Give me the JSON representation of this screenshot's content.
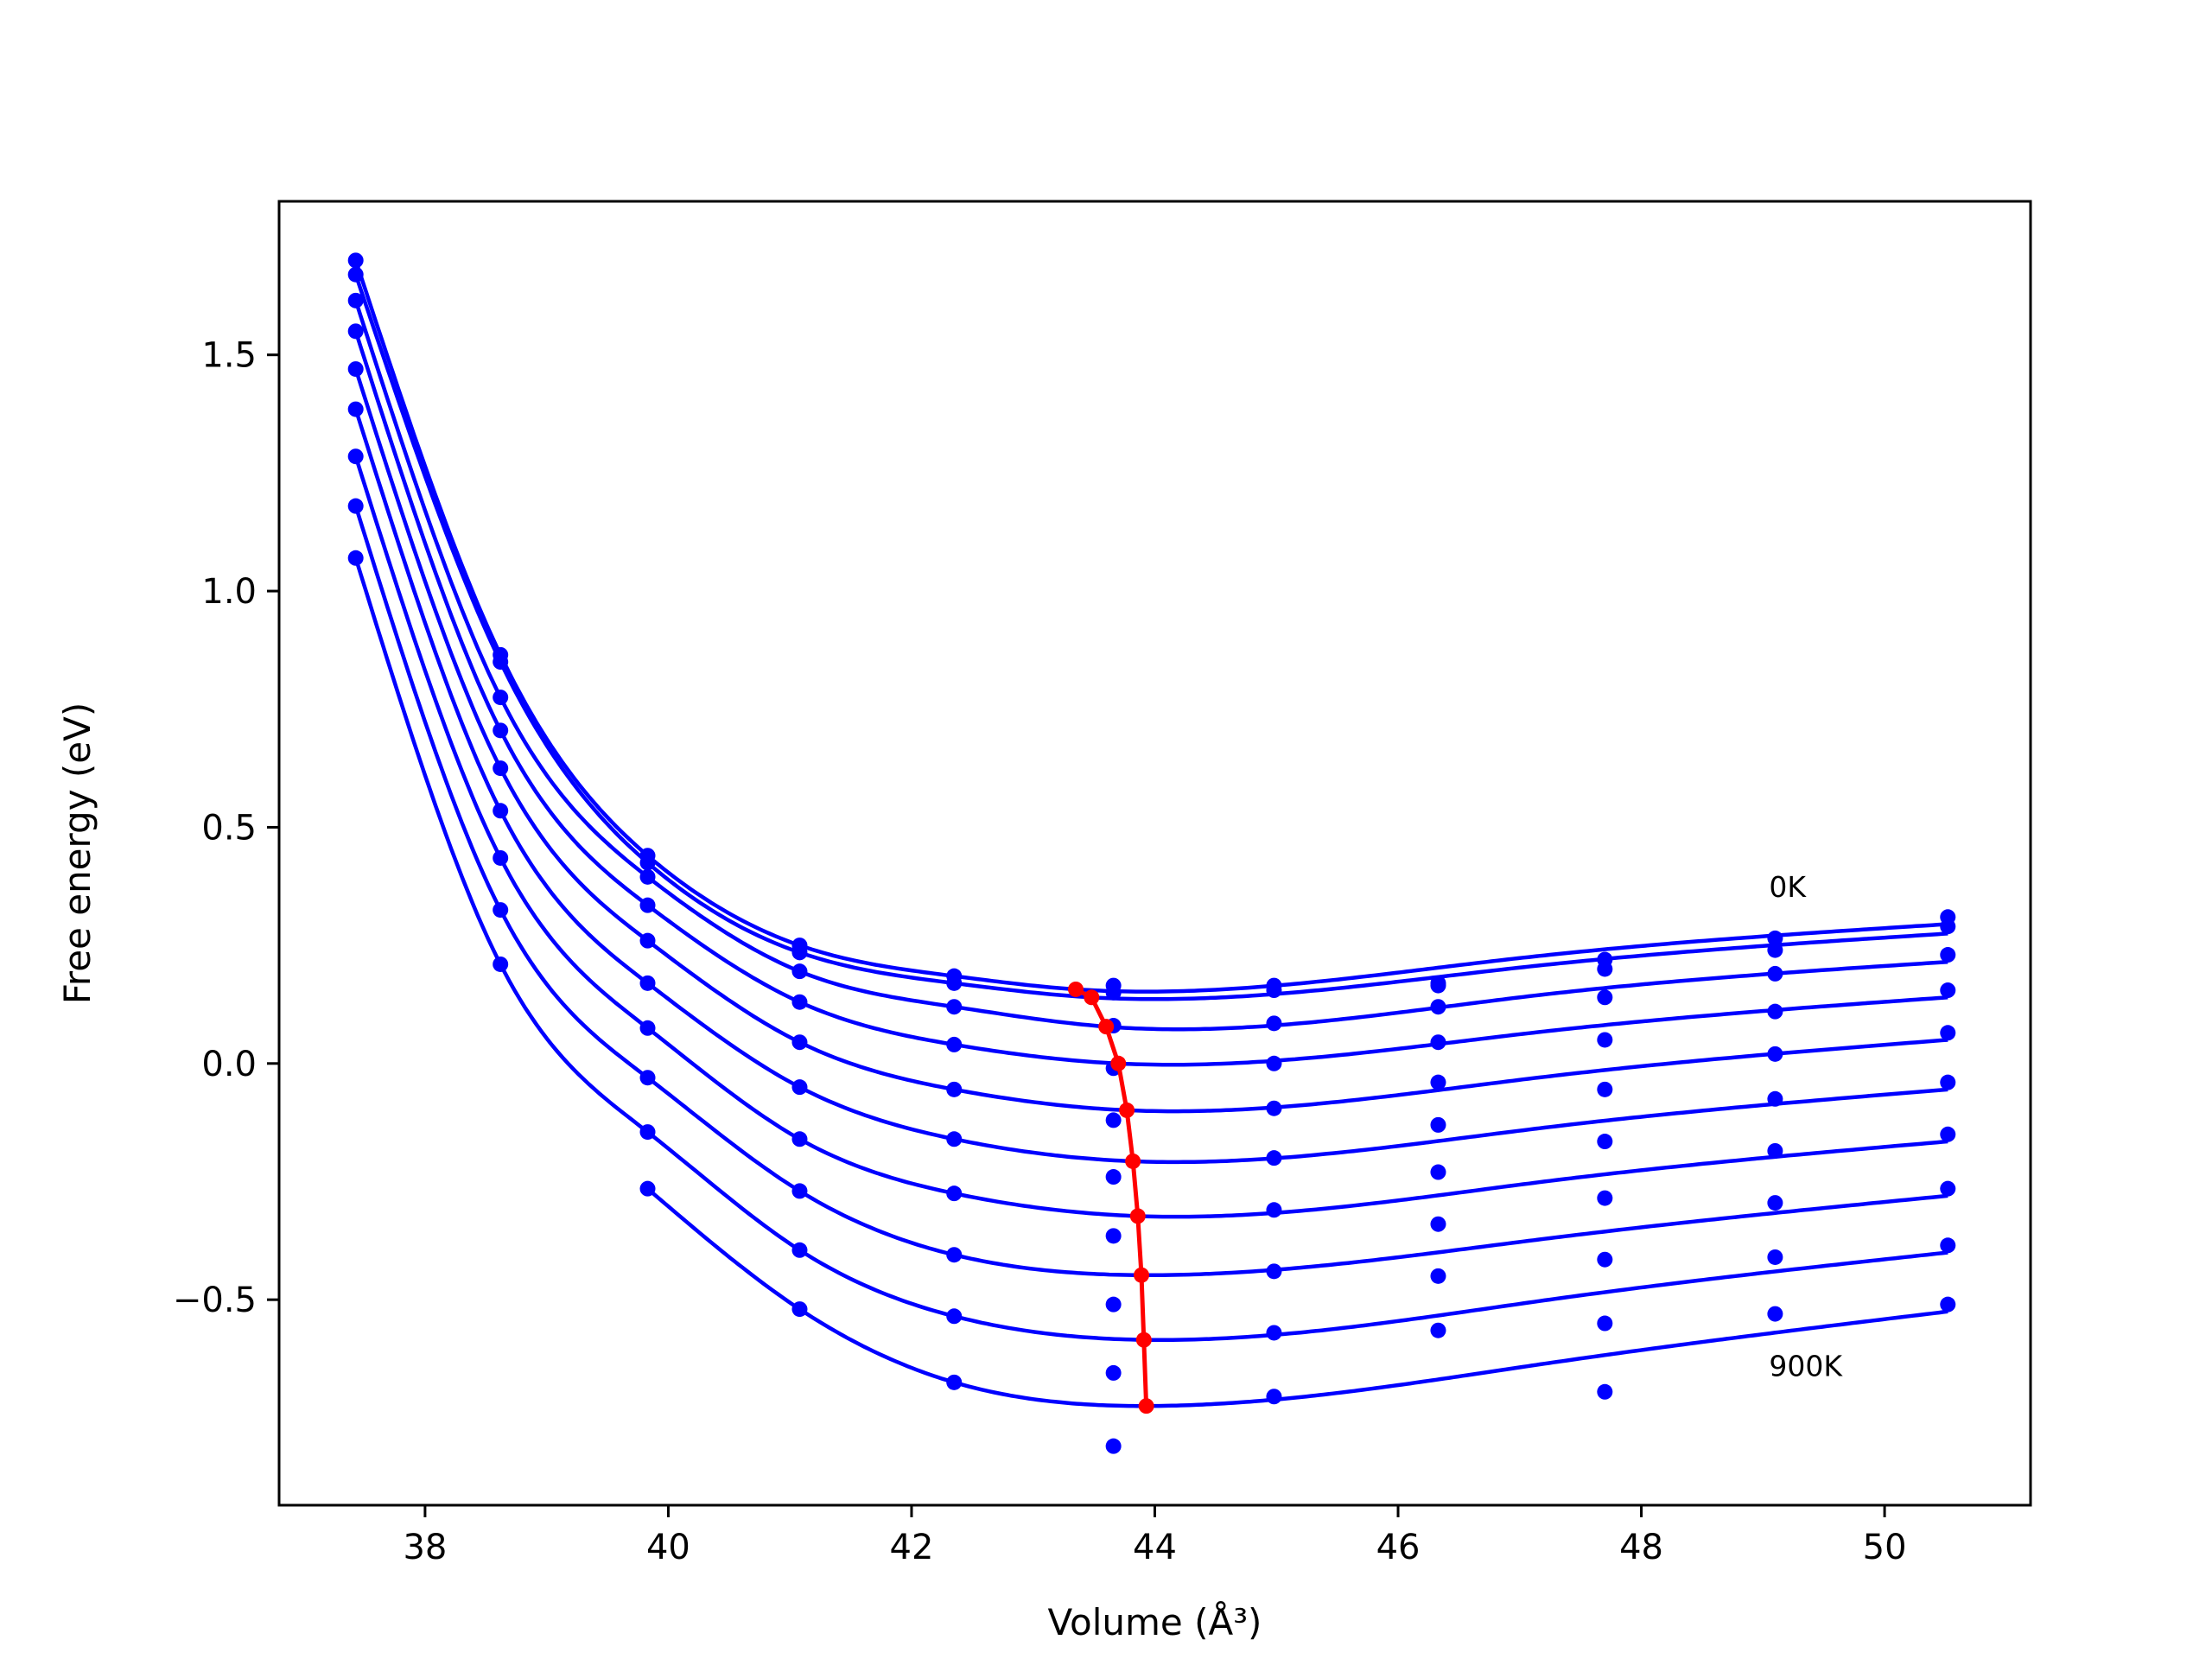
{
  "chart_data": {
    "type": "line",
    "title": "",
    "xlabel": "Volume (Å³)",
    "ylabel": "Free energy (eV)",
    "xlim": [
      36.8,
      51.2
    ],
    "ylim": [
      -0.935,
      1.825
    ],
    "x_ticks": [
      38,
      40,
      42,
      44,
      46,
      48,
      50
    ],
    "x_tick_labels": [
      "38",
      "40",
      "42",
      "44",
      "46",
      "48",
      "50"
    ],
    "y_ticks": [
      -0.5,
      0.0,
      0.5,
      1.0,
      1.5
    ],
    "y_tick_labels": [
      "−0.5",
      "0.0",
      "0.5",
      "1.0",
      "1.5"
    ],
    "grid": false,
    "annotations": [
      {
        "text": "0K",
        "x": 49.05,
        "y": 0.375
      },
      {
        "text": "900K",
        "x": 49.05,
        "y": -0.64
      }
    ],
    "point_x": [
      37.43,
      38.62,
      39.83,
      41.08,
      42.35,
      43.66,
      44.98,
      46.33,
      47.7,
      49.1,
      50.52
    ],
    "series": [
      {
        "values": [
          1.7,
          0.865,
          0.44,
          0.25,
          0.185,
          0.165,
          0.165,
          0.17,
          0.22,
          0.265,
          0.31
        ],
        "fit_min": [
          43.35,
          0.157
        ]
      },
      {
        "values": [
          1.67,
          0.85,
          0.425,
          0.235,
          0.17,
          0.15,
          0.155,
          0.165,
          0.2,
          0.24,
          0.29
        ],
        "fit_min": [
          43.48,
          0.14
        ]
      },
      {
        "values": [
          1.615,
          0.775,
          0.395,
          0.195,
          0.12,
          0.08,
          0.085,
          0.12,
          0.14,
          0.19,
          0.23
        ],
        "fit_min": [
          43.6,
          0.078
        ]
      },
      {
        "values": [
          1.55,
          0.705,
          0.335,
          0.13,
          0.04,
          -0.01,
          0.0,
          0.045,
          0.05,
          0.11,
          0.155
        ],
        "fit_min": [
          43.7,
          0.0
        ]
      },
      {
        "values": [
          1.47,
          0.625,
          0.26,
          0.045,
          -0.055,
          -0.12,
          -0.095,
          -0.04,
          -0.055,
          0.02,
          0.065
        ],
        "fit_min": [
          43.77,
          -0.099
        ]
      },
      {
        "values": [
          1.385,
          0.535,
          0.17,
          -0.05,
          -0.16,
          -0.24,
          -0.2,
          -0.13,
          -0.165,
          -0.075,
          -0.04
        ],
        "fit_min": [
          43.82,
          -0.207
        ]
      },
      {
        "values": [
          1.285,
          0.435,
          0.075,
          -0.16,
          -0.275,
          -0.365,
          -0.31,
          -0.23,
          -0.285,
          -0.185,
          -0.15
        ],
        "fit_min": [
          43.86,
          -0.323
        ]
      },
      {
        "values": [
          1.18,
          0.325,
          -0.03,
          -0.27,
          -0.405,
          -0.51,
          -0.44,
          -0.34,
          -0.415,
          -0.295,
          -0.265
        ],
        "fit_min": [
          43.89,
          -0.448
        ]
      },
      {
        "values": [
          1.07,
          0.21,
          -0.145,
          -0.395,
          -0.535,
          -0.655,
          -0.57,
          -0.45,
          -0.55,
          -0.41,
          -0.385
        ],
        "fit_min": [
          43.91,
          -0.585
        ]
      },
      {
        "values": [
          null,
          null,
          -0.265,
          -0.52,
          -0.675,
          -0.81,
          -0.705,
          -0.565,
          -0.695,
          -0.53,
          -0.51
        ],
        "fit_min": [
          43.93,
          -0.725
        ]
      }
    ],
    "minimum_curve": {
      "x": [
        43.35,
        43.48,
        43.6,
        43.7,
        43.77,
        43.82,
        43.86,
        43.89,
        43.91,
        43.93
      ],
      "y": [
        0.157,
        0.14,
        0.078,
        0.0,
        -0.099,
        -0.207,
        -0.323,
        -0.448,
        -0.585,
        -0.725
      ]
    },
    "colors": {
      "fits": "#0000ff",
      "minima": "#ff0000",
      "frame": "#000000"
    }
  }
}
